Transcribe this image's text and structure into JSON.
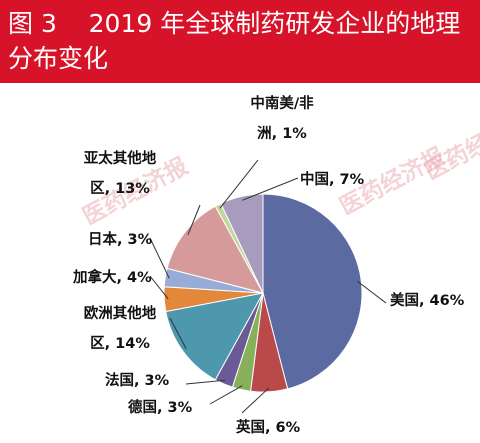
{
  "header": {
    "title": "图 3    2019 年全球制药研发企业的地理分布变化",
    "background": "#d7132a"
  },
  "watermark": "医药经济报",
  "chart_data": {
    "type": "pie",
    "title": "",
    "slices": [
      {
        "name": "美国",
        "value": 46,
        "label": "美国, 46%",
        "color": "#5b6aa0"
      },
      {
        "name": "英国",
        "value": 6,
        "label": "英国, 6%",
        "color": "#b94a49"
      },
      {
        "name": "德国",
        "value": 3,
        "label": "德国, 3%",
        "color": "#86b05a"
      },
      {
        "name": "法国",
        "value": 3,
        "label": "法国, 3%",
        "color": "#6a5a96"
      },
      {
        "name": "欧洲其他地区",
        "value": 14,
        "label": "欧洲其他地区, 14%",
        "color": "#4d98ad"
      },
      {
        "name": "加拿大",
        "value": 4,
        "label": "加拿大, 4%",
        "color": "#e3883a"
      },
      {
        "name": "日本",
        "value": 3,
        "label": "日本, 3%",
        "color": "#97acd6"
      },
      {
        "name": "亚太其他地区",
        "value": 13,
        "label": "亚太其他地区, 13%",
        "color": "#d59a99"
      },
      {
        "name": "中南美/非洲",
        "value": 1,
        "label": "中南美/非洲, 1%",
        "color": "#c2d79c"
      },
      {
        "name": "中国",
        "value": 7,
        "label": "中国, 7%",
        "color": "#a79cbd"
      }
    ]
  }
}
